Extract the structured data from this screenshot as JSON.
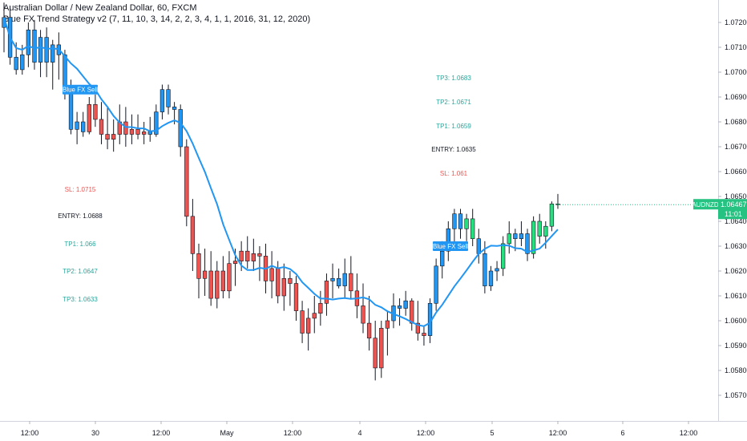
{
  "header": {
    "symbol_line": "Australian Dollar / New Zealand Dollar, 60, FXCM",
    "indicator_line": "Blue FX Trend Strategy v2 (7, 11, 10, 3, 14, 2, 2, 3, 4, 1, 1, 2016, 31, 12, 2020)"
  },
  "chart_data": {
    "type": "candlestick",
    "symbol": "AUDNZD",
    "interval": "60",
    "ylim": [
      1.0567,
      1.0733
    ],
    "y_ticks": [
      "1.07200",
      "1.07100",
      "1.07000",
      "1.06900",
      "1.06800",
      "1.06700",
      "1.06600",
      "1.06500",
      "1.06400",
      "1.06300",
      "1.06200",
      "1.06100",
      "1.06000",
      "1.05900",
      "1.05800",
      "1.05700"
    ],
    "x_ticks": [
      "12:00",
      "30",
      "12:00",
      "May",
      "12:00",
      "4",
      "12:00",
      "5",
      "12:00",
      "6",
      "12:00"
    ],
    "last_price": {
      "label": "AUDNZD",
      "value": "1.06467",
      "countdown": "11:01",
      "color": "#26c281"
    },
    "colors": {
      "up_blue": "#2196f3",
      "down_red": "#ef5350",
      "up_green": "#26e07f",
      "ma_line": "#2196f3",
      "axis_text": "#131722"
    },
    "signals": [
      {
        "label": "Blue FX Sell",
        "price": 1.0693
      },
      {
        "label": "Blue FX Sell",
        "price": 1.063
      }
    ],
    "trade_boxes": [
      {
        "lines": [
          {
            "text": "SL: 1.0715",
            "color": "#ef5350"
          },
          {
            "text": "ENTRY: 1.0688",
            "color": "#131722"
          },
          {
            "text": "TP1: 1.066",
            "color": "#26a69a"
          },
          {
            "text": "TP2: 1.0647",
            "color": "#26a69a"
          },
          {
            "text": "TP3: 1.0633",
            "color": "#26a69a"
          }
        ]
      },
      {
        "lines": [
          {
            "text": "TP3: 1.0683",
            "color": "#26a69a"
          },
          {
            "text": "TP2: 1.0671",
            "color": "#26a69a"
          },
          {
            "text": "TP1: 1.0659",
            "color": "#26a69a"
          },
          {
            "text": "ENTRY: 1.0635",
            "color": "#131722"
          },
          {
            "text": "SL: 1.061",
            "color": "#ef5350"
          }
        ]
      }
    ],
    "candles": [
      {
        "o": 1.0718,
        "h": 1.0728,
        "l": 1.0708,
        "c": 1.0722,
        "col": "b"
      },
      {
        "o": 1.0722,
        "h": 1.0726,
        "l": 1.0703,
        "c": 1.0706,
        "col": "b"
      },
      {
        "o": 1.0706,
        "h": 1.0712,
        "l": 1.0699,
        "c": 1.0701,
        "col": "b"
      },
      {
        "o": 1.0701,
        "h": 1.0711,
        "l": 1.0699,
        "c": 1.0707,
        "col": "b"
      },
      {
        "o": 1.0707,
        "h": 1.072,
        "l": 1.0702,
        "c": 1.0717,
        "col": "b"
      },
      {
        "o": 1.0717,
        "h": 1.0721,
        "l": 1.0701,
        "c": 1.0704,
        "col": "b"
      },
      {
        "o": 1.0704,
        "h": 1.0717,
        "l": 1.0698,
        "c": 1.0714,
        "col": "b"
      },
      {
        "o": 1.0714,
        "h": 1.0718,
        "l": 1.0698,
        "c": 1.0704,
        "col": "b"
      },
      {
        "o": 1.0704,
        "h": 1.0713,
        "l": 1.0693,
        "c": 1.0711,
        "col": "b"
      },
      {
        "o": 1.0711,
        "h": 1.0716,
        "l": 1.0697,
        "c": 1.0707,
        "col": "b"
      },
      {
        "o": 1.0707,
        "h": 1.0709,
        "l": 1.0689,
        "c": 1.0693,
        "col": "b"
      },
      {
        "o": 1.0693,
        "h": 1.0697,
        "l": 1.0675,
        "c": 1.0677,
        "col": "b"
      },
      {
        "o": 1.0677,
        "h": 1.0684,
        "l": 1.0671,
        "c": 1.068,
        "col": "b"
      },
      {
        "o": 1.068,
        "h": 1.0684,
        "l": 1.0674,
        "c": 1.0676,
        "col": "b"
      },
      {
        "o": 1.0676,
        "h": 1.069,
        "l": 1.0675,
        "c": 1.0687,
        "col": "r"
      },
      {
        "o": 1.0687,
        "h": 1.0691,
        "l": 1.0678,
        "c": 1.0681,
        "col": "r"
      },
      {
        "o": 1.0681,
        "h": 1.0688,
        "l": 1.0671,
        "c": 1.0675,
        "col": "r"
      },
      {
        "o": 1.0675,
        "h": 1.0686,
        "l": 1.0669,
        "c": 1.0673,
        "col": "r"
      },
      {
        "o": 1.0673,
        "h": 1.0681,
        "l": 1.0668,
        "c": 1.0675,
        "col": "r"
      },
      {
        "o": 1.0675,
        "h": 1.0687,
        "l": 1.0671,
        "c": 1.068,
        "col": "r"
      },
      {
        "o": 1.068,
        "h": 1.0686,
        "l": 1.067,
        "c": 1.0675,
        "col": "r"
      },
      {
        "o": 1.0675,
        "h": 1.0683,
        "l": 1.0671,
        "c": 1.0677,
        "col": "r"
      },
      {
        "o": 1.0677,
        "h": 1.0683,
        "l": 1.0673,
        "c": 1.0675,
        "col": "r"
      },
      {
        "o": 1.0675,
        "h": 1.068,
        "l": 1.0671,
        "c": 1.0676,
        "col": "r"
      },
      {
        "o": 1.0676,
        "h": 1.0682,
        "l": 1.0672,
        "c": 1.0675,
        "col": "b"
      },
      {
        "o": 1.0675,
        "h": 1.0687,
        "l": 1.0674,
        "c": 1.0684,
        "col": "b"
      },
      {
        "o": 1.0684,
        "h": 1.0695,
        "l": 1.0681,
        "c": 1.0693,
        "col": "b"
      },
      {
        "o": 1.0693,
        "h": 1.0695,
        "l": 1.0683,
        "c": 1.0686,
        "col": "b"
      },
      {
        "o": 1.0686,
        "h": 1.0688,
        "l": 1.0679,
        "c": 1.0685,
        "col": "b"
      },
      {
        "o": 1.0685,
        "h": 1.0687,
        "l": 1.0666,
        "c": 1.067,
        "col": "b"
      },
      {
        "o": 1.067,
        "h": 1.0673,
        "l": 1.0638,
        "c": 1.0642,
        "col": "r"
      },
      {
        "o": 1.0642,
        "h": 1.0649,
        "l": 1.062,
        "c": 1.0627,
        "col": "r"
      },
      {
        "o": 1.0627,
        "h": 1.0631,
        "l": 1.0609,
        "c": 1.0617,
        "col": "r"
      },
      {
        "o": 1.0617,
        "h": 1.0629,
        "l": 1.061,
        "c": 1.062,
        "col": "r"
      },
      {
        "o": 1.062,
        "h": 1.0628,
        "l": 1.0606,
        "c": 1.0609,
        "col": "r"
      },
      {
        "o": 1.0609,
        "h": 1.0624,
        "l": 1.0605,
        "c": 1.062,
        "col": "r"
      },
      {
        "o": 1.062,
        "h": 1.0626,
        "l": 1.0609,
        "c": 1.0612,
        "col": "r"
      },
      {
        "o": 1.0612,
        "h": 1.0628,
        "l": 1.0609,
        "c": 1.0623,
        "col": "r"
      },
      {
        "o": 1.0623,
        "h": 1.0629,
        "l": 1.0614,
        "c": 1.0624,
        "col": "r"
      },
      {
        "o": 1.0624,
        "h": 1.0632,
        "l": 1.062,
        "c": 1.0628,
        "col": "r"
      },
      {
        "o": 1.0628,
        "h": 1.0634,
        "l": 1.0621,
        "c": 1.0624,
        "col": "r"
      },
      {
        "o": 1.0624,
        "h": 1.0633,
        "l": 1.062,
        "c": 1.0627,
        "col": "r"
      },
      {
        "o": 1.0627,
        "h": 1.063,
        "l": 1.0616,
        "c": 1.0626,
        "col": "r"
      },
      {
        "o": 1.0626,
        "h": 1.0631,
        "l": 1.0611,
        "c": 1.0616,
        "col": "r"
      },
      {
        "o": 1.0616,
        "h": 1.0628,
        "l": 1.0609,
        "c": 1.0621,
        "col": "r"
      },
      {
        "o": 1.0621,
        "h": 1.0624,
        "l": 1.0607,
        "c": 1.061,
        "col": "r"
      },
      {
        "o": 1.061,
        "h": 1.0623,
        "l": 1.0604,
        "c": 1.0617,
        "col": "r"
      },
      {
        "o": 1.0617,
        "h": 1.062,
        "l": 1.0606,
        "c": 1.0615,
        "col": "r"
      },
      {
        "o": 1.0615,
        "h": 1.0618,
        "l": 1.06,
        "c": 1.0604,
        "col": "r"
      },
      {
        "o": 1.0604,
        "h": 1.0608,
        "l": 1.0591,
        "c": 1.0595,
        "col": "r"
      },
      {
        "o": 1.0595,
        "h": 1.0605,
        "l": 1.0588,
        "c": 1.0601,
        "col": "r"
      },
      {
        "o": 1.0601,
        "h": 1.061,
        "l": 1.0595,
        "c": 1.0603,
        "col": "r"
      },
      {
        "o": 1.0603,
        "h": 1.0612,
        "l": 1.0598,
        "c": 1.0607,
        "col": "r"
      },
      {
        "o": 1.0607,
        "h": 1.0619,
        "l": 1.0602,
        "c": 1.0616,
        "col": "r"
      },
      {
        "o": 1.0616,
        "h": 1.0623,
        "l": 1.0609,
        "c": 1.0617,
        "col": "b"
      },
      {
        "o": 1.0617,
        "h": 1.0621,
        "l": 1.0613,
        "c": 1.0614,
        "col": "b"
      },
      {
        "o": 1.0614,
        "h": 1.0625,
        "l": 1.0609,
        "c": 1.0619,
        "col": "b"
      },
      {
        "o": 1.0619,
        "h": 1.0626,
        "l": 1.0609,
        "c": 1.0612,
        "col": "r"
      },
      {
        "o": 1.0612,
        "h": 1.0619,
        "l": 1.0601,
        "c": 1.0606,
        "col": "r"
      },
      {
        "o": 1.0606,
        "h": 1.0615,
        "l": 1.0595,
        "c": 1.0599,
        "col": "r"
      },
      {
        "o": 1.0599,
        "h": 1.061,
        "l": 1.0588,
        "c": 1.0593,
        "col": "r"
      },
      {
        "o": 1.0593,
        "h": 1.06,
        "l": 1.0576,
        "c": 1.0581,
        "col": "r"
      },
      {
        "o": 1.0581,
        "h": 1.06,
        "l": 1.0577,
        "c": 1.0597,
        "col": "r"
      },
      {
        "o": 1.0597,
        "h": 1.0604,
        "l": 1.0586,
        "c": 1.06,
        "col": "r"
      },
      {
        "o": 1.06,
        "h": 1.0611,
        "l": 1.0597,
        "c": 1.0606,
        "col": "b"
      },
      {
        "o": 1.0606,
        "h": 1.0609,
        "l": 1.0598,
        "c": 1.0605,
        "col": "b"
      },
      {
        "o": 1.0605,
        "h": 1.0612,
        "l": 1.0602,
        "c": 1.0608,
        "col": "b"
      },
      {
        "o": 1.0608,
        "h": 1.0609,
        "l": 1.0596,
        "c": 1.0599,
        "col": "r"
      },
      {
        "o": 1.0599,
        "h": 1.0608,
        "l": 1.0592,
        "c": 1.0595,
        "col": "r"
      },
      {
        "o": 1.0595,
        "h": 1.0598,
        "l": 1.059,
        "c": 1.0594,
        "col": "r"
      },
      {
        "o": 1.0594,
        "h": 1.0609,
        "l": 1.0591,
        "c": 1.0607,
        "col": "b"
      },
      {
        "o": 1.0607,
        "h": 1.0625,
        "l": 1.0604,
        "c": 1.0622,
        "col": "b"
      },
      {
        "o": 1.0622,
        "h": 1.0632,
        "l": 1.0617,
        "c": 1.0628,
        "col": "b"
      },
      {
        "o": 1.0628,
        "h": 1.064,
        "l": 1.0624,
        "c": 1.0637,
        "col": "b"
      },
      {
        "o": 1.0637,
        "h": 1.0645,
        "l": 1.063,
        "c": 1.0643,
        "col": "b"
      },
      {
        "o": 1.0643,
        "h": 1.0645,
        "l": 1.0633,
        "c": 1.0637,
        "col": "b"
      },
      {
        "o": 1.0637,
        "h": 1.0643,
        "l": 1.0632,
        "c": 1.0641,
        "col": "g"
      },
      {
        "o": 1.0641,
        "h": 1.0645,
        "l": 1.063,
        "c": 1.0633,
        "col": "g"
      },
      {
        "o": 1.0633,
        "h": 1.0637,
        "l": 1.0623,
        "c": 1.0627,
        "col": "b"
      },
      {
        "o": 1.0627,
        "h": 1.0632,
        "l": 1.0611,
        "c": 1.0614,
        "col": "b"
      },
      {
        "o": 1.0614,
        "h": 1.0622,
        "l": 1.0612,
        "c": 1.062,
        "col": "b"
      },
      {
        "o": 1.062,
        "h": 1.0624,
        "l": 1.0616,
        "c": 1.0621,
        "col": "b"
      },
      {
        "o": 1.0621,
        "h": 1.0634,
        "l": 1.0618,
        "c": 1.0631,
        "col": "g"
      },
      {
        "o": 1.0631,
        "h": 1.064,
        "l": 1.0627,
        "c": 1.0635,
        "col": "g"
      },
      {
        "o": 1.0635,
        "h": 1.0637,
        "l": 1.0628,
        "c": 1.0633,
        "col": "b"
      },
      {
        "o": 1.0633,
        "h": 1.064,
        "l": 1.063,
        "c": 1.0635,
        "col": "b"
      },
      {
        "o": 1.0635,
        "h": 1.0637,
        "l": 1.0624,
        "c": 1.0627,
        "col": "b"
      },
      {
        "o": 1.0627,
        "h": 1.0642,
        "l": 1.0625,
        "c": 1.064,
        "col": "g"
      },
      {
        "o": 1.064,
        "h": 1.0643,
        "l": 1.0631,
        "c": 1.0634,
        "col": "g"
      },
      {
        "o": 1.0634,
        "h": 1.064,
        "l": 1.0629,
        "c": 1.0638,
        "col": "g"
      },
      {
        "o": 1.0638,
        "h": 1.0648,
        "l": 1.0636,
        "c": 1.0647,
        "col": "g"
      },
      {
        "o": 1.0647,
        "h": 1.0651,
        "l": 1.0645,
        "c": 1.0647,
        "col": "g"
      }
    ]
  }
}
